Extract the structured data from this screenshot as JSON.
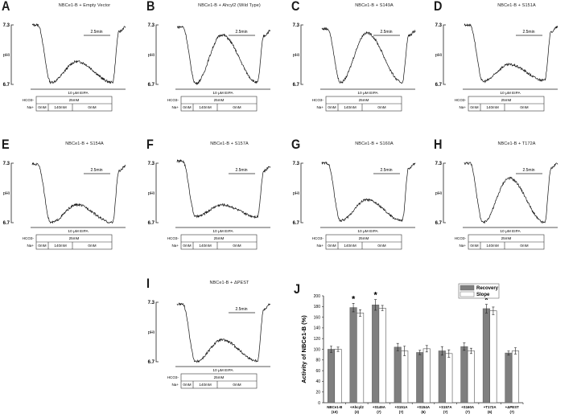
{
  "chart_data": [
    {
      "type": "line",
      "panel": "A",
      "title": "NBCe1-B + Empty Vector",
      "ylabel": "pHi",
      "yticks": [
        "7.3",
        "6.7"
      ],
      "ylim": [
        6.7,
        7.3
      ],
      "scale_bar": "2.5min",
      "drug_bar": "10 μM EIPA",
      "hco3_label": "HCO3-",
      "hco3_value": "25mM",
      "na_label": "Na+",
      "na_steps": [
        "0mM",
        "140mM",
        "0mM"
      ],
      "trace_profile": {
        "start": 7.3,
        "min1": 6.72,
        "peak": 6.93,
        "min2": 6.72,
        "end": 7.28
      }
    },
    {
      "type": "line",
      "panel": "B",
      "title": "NBCe1-B + Ahcyl2 (Wild Type)",
      "ylabel": "pHi",
      "yticks": [
        "7.3",
        "6.7"
      ],
      "ylim": [
        6.7,
        7.3
      ],
      "scale_bar": "2.5min",
      "drug_bar": "10 μM EIPA",
      "hco3_label": "HCO3-",
      "hco3_value": "25mM",
      "na_label": "Na+",
      "na_steps": [
        "0mM",
        "140mM",
        "0mM"
      ],
      "trace_profile": {
        "start": 7.28,
        "min1": 6.71,
        "peak": 7.2,
        "min2": 6.72,
        "end": 7.24
      }
    },
    {
      "type": "line",
      "panel": "C",
      "title": "NBCe1-B + S149A",
      "ylabel": "pHi",
      "yticks": [
        "7.3",
        "6.7"
      ],
      "ylim": [
        6.7,
        7.3
      ],
      "scale_bar": "2.5min",
      "drug_bar": "10 μM EIPA",
      "hco3_label": "HCO3-",
      "hco3_value": "25mM",
      "na_label": "Na+",
      "na_steps": [
        "0mM",
        "140mM",
        "0mM"
      ],
      "trace_profile": {
        "start": 7.26,
        "min1": 6.72,
        "peak": 7.22,
        "min2": 6.72,
        "end": 7.24
      }
    },
    {
      "type": "line",
      "panel": "D",
      "title": "NBCe1-B + S151A",
      "ylabel": "pHi",
      "yticks": [
        "7.3",
        "6.7"
      ],
      "ylim": [
        6.7,
        7.3
      ],
      "scale_bar": "2.5min",
      "drug_bar": "10 μM EIPA",
      "hco3_label": "HCO3-",
      "hco3_value": "25mM",
      "na_label": "Na+",
      "na_steps": [
        "0mM",
        "140mM",
        "0mM"
      ],
      "trace_profile": {
        "start": 7.3,
        "min1": 6.73,
        "peak": 6.9,
        "min2": 6.74,
        "end": 7.28
      }
    },
    {
      "type": "line",
      "panel": "E",
      "title": "NBCe1-B + S154A",
      "ylabel": "pHi",
      "yticks": [
        "7.3",
        "6.7"
      ],
      "ylim": [
        6.7,
        7.3
      ],
      "scale_bar": "2.5min",
      "drug_bar": "10 μM EIPA",
      "hco3_label": "HCO3-",
      "hco3_value": "25mM",
      "na_label": "Na+",
      "na_steps": [
        "0mM",
        "140mM",
        "0mM"
      ],
      "trace_profile": {
        "start": 7.29,
        "min1": 6.7,
        "peak": 6.88,
        "min2": 6.7,
        "end": 7.27
      }
    },
    {
      "type": "line",
      "panel": "F",
      "title": "NBCe1-B + S157A",
      "ylabel": "pHi",
      "yticks": [
        "7.3",
        "6.7"
      ],
      "ylim": [
        6.7,
        7.3
      ],
      "scale_bar": "2.5min",
      "drug_bar": "10 μM EIPA",
      "hco3_label": "HCO3-",
      "hco3_value": "25mM",
      "na_label": "Na+",
      "na_steps": [
        "0mM",
        "140mM",
        "0mM"
      ],
      "trace_profile": {
        "start": 7.32,
        "min1": 6.76,
        "peak": 6.88,
        "min2": 6.76,
        "end": 7.27
      }
    },
    {
      "type": "line",
      "panel": "G",
      "title": "NBCe1-B + S160A",
      "ylabel": "pHi",
      "yticks": [
        "7.3",
        "6.7"
      ],
      "ylim": [
        6.7,
        7.3
      ],
      "scale_bar": "2.5min",
      "drug_bar": "10 μM EIPA",
      "hco3_label": "HCO3-",
      "hco3_value": "25mM",
      "na_label": "Na+",
      "na_steps": [
        "0mM",
        "140mM",
        "0mM"
      ],
      "trace_profile": {
        "start": 7.3,
        "min1": 6.72,
        "peak": 6.93,
        "min2": 6.72,
        "end": 7.3
      }
    },
    {
      "type": "line",
      "panel": "H",
      "title": "NBCe1-B + T172A",
      "ylabel": "pHi",
      "yticks": [
        "7.3",
        "6.7"
      ],
      "ylim": [
        6.7,
        7.3
      ],
      "scale_bar": "2.5min",
      "drug_bar": "10 μM EIPA",
      "hco3_label": "HCO3-",
      "hco3_value": "25mM",
      "na_label": "Na+",
      "na_steps": [
        "0mM",
        "140mM",
        "0mM"
      ],
      "trace_profile": {
        "start": 7.3,
        "min1": 6.7,
        "peak": 7.15,
        "min2": 6.7,
        "end": 7.3
      }
    },
    {
      "type": "line",
      "panel": "I",
      "title": "NBCe1-B + ΔPEST",
      "ylabel": "pHi",
      "yticks": [
        "7.3",
        "6.7"
      ],
      "ylim": [
        6.7,
        7.3
      ],
      "scale_bar": "2.5min",
      "drug_bar": "10 μM EIPA",
      "hco3_label": "HCO3-",
      "hco3_value": "25mM",
      "na_label": "Na+",
      "na_steps": [
        "0mM",
        "140mM",
        "0mM"
      ],
      "trace_profile": {
        "start": 7.28,
        "min1": 6.7,
        "peak": 6.92,
        "min2": 6.71,
        "end": 7.28
      }
    },
    {
      "type": "bar",
      "panel": "J",
      "title": "",
      "xlabel": "",
      "ylabel": "Activity of NBCe1-B (%)",
      "ylim": [
        0,
        200
      ],
      "yticks": [
        0,
        20,
        40,
        60,
        80,
        100,
        120,
        140,
        160,
        180,
        200
      ],
      "categories": [
        "NBCe1-B",
        "+Ahcyl2",
        "+S149A",
        "+S151A",
        "+S154A",
        "+S157A",
        "+S160A",
        "+T172A",
        "+ΔPEST"
      ],
      "n_labels": [
        "(10)",
        "(3)",
        "(7)",
        "(7)",
        "(6)",
        "(7)",
        "(7)",
        "(6)",
        "(7)"
      ],
      "series": [
        {
          "name": "Recovery",
          "color": "#7f7f7f",
          "values": [
            100,
            178,
            183,
            104,
            94,
            97,
            105,
            176,
            93
          ],
          "errors": [
            6,
            8,
            10,
            7,
            4,
            8,
            7,
            8,
            4
          ]
        },
        {
          "name": "Slope",
          "color": "#ffffff",
          "values": [
            100,
            168,
            177,
            97,
            101,
            92,
            97,
            172,
            97
          ],
          "errors": [
            4,
            6,
            5,
            9,
            6,
            7,
            5,
            7,
            6
          ]
        }
      ],
      "significance": [
        "",
        "*",
        "*",
        "",
        "",
        "",
        "",
        "*",
        ""
      ],
      "legend_position": "top-right",
      "grid": false
    }
  ],
  "labels": {
    "A": "A",
    "B": "B",
    "C": "C",
    "D": "D",
    "E": "E",
    "F": "F",
    "G": "G",
    "H": "H",
    "I": "I",
    "J": "J"
  }
}
